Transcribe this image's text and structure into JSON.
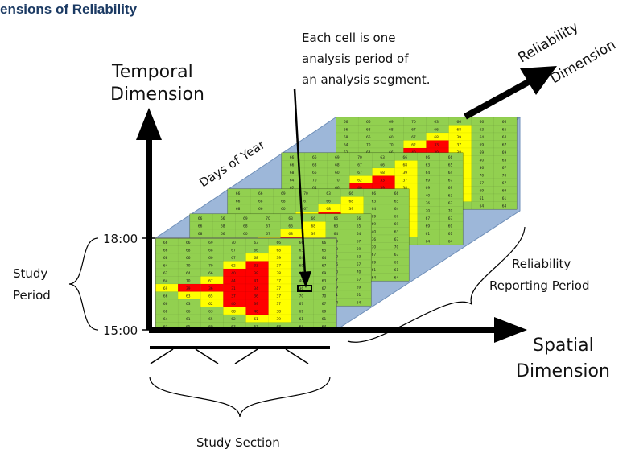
{
  "title": "ensions of Reliability",
  "labels": {
    "temporal_l1": "Temporal",
    "temporal_l2": "Dimension",
    "reliability_l1": "Reliability",
    "reliability_l2": "Dimension",
    "spatial_l1": "Spatial",
    "spatial_l2": "Dimension",
    "days_of_year": "Days of Year",
    "time_top": "18:00",
    "time_bottom": "15:00",
    "study_period_l1": "Study",
    "study_period_l2": "Period",
    "study_section": "Study  Section",
    "reporting_l1": "Reliability",
    "reporting_l2": "Reporting Period"
  },
  "annotation": {
    "line1": "Each cell is one",
    "line2": "analysis period of",
    "line3": "an analysis segment."
  },
  "colors": {
    "title": "#1b3a63",
    "green": "#92d050",
    "yellow": "#ffff00",
    "red": "#ff0000",
    "blue_plane": "#9db7d9",
    "axis": "#000000"
  },
  "grid": {
    "values": [
      [
        "66",
        "66",
        "69",
        "70",
        "63",
        "66",
        "66",
        "66"
      ],
      [
        "66",
        "68",
        "68",
        "67",
        "66",
        "68",
        "63",
        "65"
      ],
      [
        "68",
        "66",
        "60",
        "67",
        "68",
        "39",
        "64",
        "64"
      ],
      [
        "64",
        "70",
        "70",
        "62",
        "33",
        "37",
        "69",
        "67"
      ],
      [
        "62",
        "64",
        "66",
        "40",
        "39",
        "38",
        "69",
        "69"
      ],
      [
        "64",
        "70",
        "67",
        "44",
        "41",
        "37",
        "40",
        "63"
      ],
      [
        "69",
        "39",
        "36",
        "31",
        "34",
        "37",
        "36",
        "67"
      ],
      [
        "66",
        "63",
        "65",
        "37",
        "36",
        "37",
        "70",
        "70"
      ],
      [
        "66",
        "63",
        "62",
        "40",
        "39",
        "37",
        "67",
        "67"
      ],
      [
        "68",
        "66",
        "63",
        "68",
        "40",
        "38",
        "69",
        "69"
      ],
      [
        "64",
        "61",
        "65",
        "62",
        "61",
        "39",
        "61",
        "61"
      ],
      [
        "63",
        "65",
        "60",
        "63",
        "67",
        "68",
        "64",
        "64"
      ]
    ],
    "colors": [
      [
        "g",
        "g",
        "g",
        "g",
        "g",
        "g",
        "g",
        "g"
      ],
      [
        "g",
        "g",
        "g",
        "g",
        "g",
        "y",
        "g",
        "g"
      ],
      [
        "g",
        "g",
        "g",
        "g",
        "y",
        "y",
        "g",
        "g"
      ],
      [
        "g",
        "g",
        "g",
        "y",
        "r",
        "y",
        "g",
        "g"
      ],
      [
        "g",
        "g",
        "g",
        "r",
        "r",
        "y",
        "g",
        "g"
      ],
      [
        "g",
        "g",
        "y",
        "r",
        "r",
        "y",
        "g",
        "g"
      ],
      [
        "y",
        "r",
        "r",
        "r",
        "r",
        "y",
        "g",
        "g"
      ],
      [
        "g",
        "y",
        "y",
        "r",
        "r",
        "y",
        "g",
        "g"
      ],
      [
        "g",
        "g",
        "y",
        "r",
        "r",
        "y",
        "g",
        "g"
      ],
      [
        "g",
        "g",
        "g",
        "y",
        "r",
        "y",
        "g",
        "g"
      ],
      [
        "g",
        "g",
        "g",
        "g",
        "y",
        "y",
        "g",
        "g"
      ],
      [
        "g",
        "g",
        "g",
        "g",
        "g",
        "g",
        "g",
        "g"
      ]
    ]
  }
}
